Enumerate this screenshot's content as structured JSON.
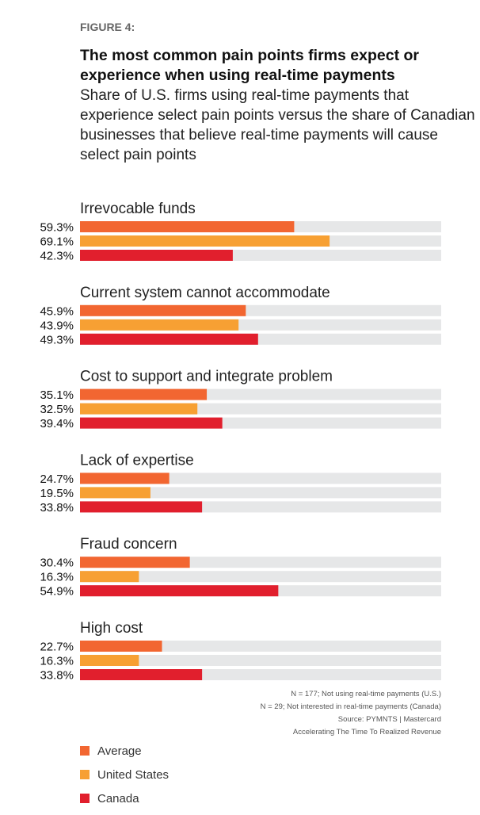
{
  "figure_label": "FIGURE 4:",
  "chart_data": {
    "type": "bar",
    "orientation": "horizontal",
    "title": "The most common pain points firms expect or experience when using real-time payments",
    "subtitle": "Share of U.S. firms using real-time payments that experience select pain points versus the share of Canadian businesses that believe real-time payments will cause select pain points",
    "categories": [
      "Irrevocable funds",
      "Current system cannot accommodate",
      "Cost to support and integrate problem",
      "Lack of expertise",
      "Fraud concern",
      "High cost"
    ],
    "series": [
      {
        "name": "Average",
        "color": "#F26631",
        "values": [
          59.3,
          45.9,
          35.1,
          24.7,
          30.4,
          22.7
        ],
        "labels": [
          "59.3%",
          "45.9%",
          "35.1%",
          "24.7%",
          "30.4%",
          "22.7%"
        ]
      },
      {
        "name": "United States",
        "color": "#F7A033",
        "values": [
          69.1,
          43.9,
          32.5,
          19.5,
          16.3,
          16.3
        ],
        "labels": [
          "69.1%",
          "43.9%",
          "32.5%",
          "19.5%",
          "16.3%",
          "16.3%"
        ]
      },
      {
        "name": "Canada",
        "color": "#E11F2D",
        "values": [
          42.3,
          49.3,
          39.4,
          33.8,
          54.9,
          33.8
        ],
        "labels": [
          "42.3%",
          "49.3%",
          "39.4%",
          "33.8%",
          "54.9%",
          "33.8%"
        ]
      }
    ],
    "xlim": [
      0,
      100
    ],
    "track_color": "#E6E7E8",
    "grid": false,
    "legend_placement": "bottom-left"
  },
  "notes": [
    "N = 177; Not using real-time payments (U.S.)",
    "N = 29; Not interested in real-time payments (Canada)",
    "Source: PYMNTS  |  Mastercard",
    "Accelerating The Time To Realized Revenue"
  ]
}
